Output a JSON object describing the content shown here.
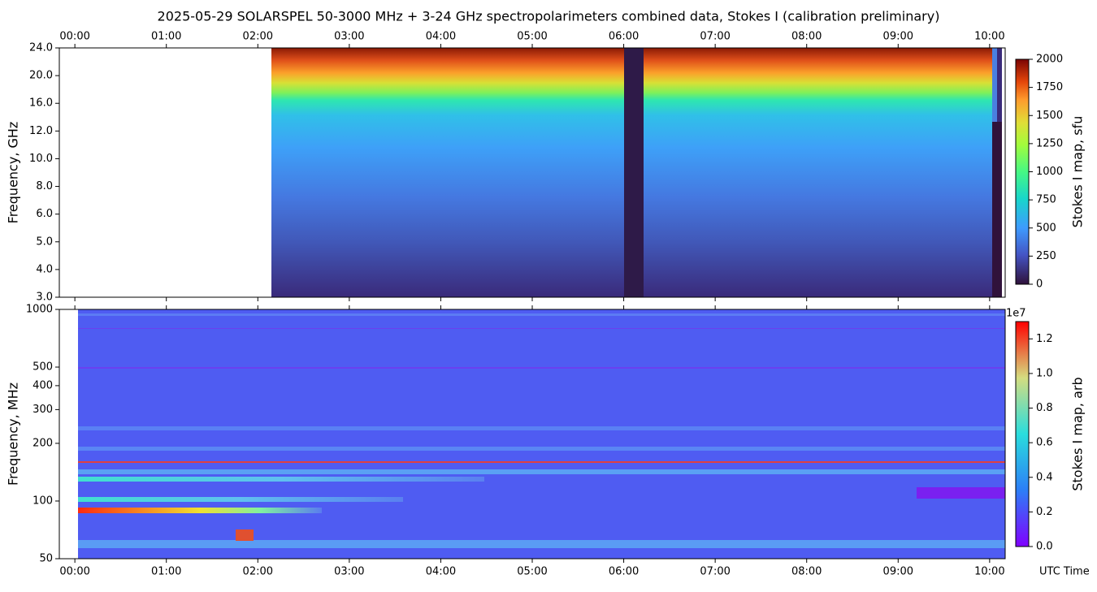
{
  "chart_data": {
    "type": "spectrogram",
    "title": "2025-05-29  SOLARSPEL  50-3000 MHz  +  3-24 GHz  spectropolarimeters combined data,  Stokes I  (calibration preliminary)",
    "xlabel": "UTC Time",
    "xlim": [
      -0.17,
      10.17
    ],
    "xticks": [
      {
        "value": 0,
        "label": "00:00"
      },
      {
        "value": 1,
        "label": "01:00"
      },
      {
        "value": 2,
        "label": "02:00"
      },
      {
        "value": 3,
        "label": "03:00"
      },
      {
        "value": 4,
        "label": "04:00"
      },
      {
        "value": 5,
        "label": "05:00"
      },
      {
        "value": 6,
        "label": "06:00"
      },
      {
        "value": 7,
        "label": "07:00"
      },
      {
        "value": 8,
        "label": "08:00"
      },
      {
        "value": 9,
        "label": "09:00"
      },
      {
        "value": 10,
        "label": "10:00"
      }
    ],
    "panels": [
      {
        "ylabel": "Frequency, GHz",
        "yticks": [
          {
            "value": 3,
            "label": "3.0"
          },
          {
            "value": 4,
            "label": "4.0"
          },
          {
            "value": 5,
            "label": "5.0"
          },
          {
            "value": 6,
            "label": "6.0"
          },
          {
            "value": 8,
            "label": "8.0"
          },
          {
            "value": 10,
            "label": "10.0"
          },
          {
            "value": 12,
            "label": "12.0"
          },
          {
            "value": 16,
            "label": "16.0"
          },
          {
            "value": 20,
            "label": "20.0"
          },
          {
            "value": 24,
            "label": "24.0"
          }
        ],
        "colorbar": {
          "label": "Stokes I map, sfu",
          "lim": [
            0,
            2000
          ],
          "ticks": [
            0,
            250,
            500,
            750,
            1000,
            1250,
            1500,
            1750,
            2000
          ]
        }
      },
      {
        "ylabel": "Frequency, MHz",
        "ylim": [
          50,
          1000
        ],
        "log_scale": true,
        "yticks": [
          50,
          100,
          200,
          300,
          400,
          500,
          1000
        ],
        "colorbar": {
          "label": "Stokes I map, arb",
          "lim": [
            0,
            13000000
          ],
          "offset_label": "1e7",
          "ticks": [
            {
              "value": 0,
              "label": "0.0"
            },
            {
              "value": 2000000,
              "label": "0.2"
            },
            {
              "value": 4000000,
              "label": "0.4"
            },
            {
              "value": 6000000,
              "label": "0.6"
            },
            {
              "value": 8000000,
              "label": "0.8"
            },
            {
              "value": 10000000,
              "label": "1.0"
            },
            {
              "value": 12000000,
              "label": "1.2"
            }
          ]
        }
      }
    ]
  }
}
